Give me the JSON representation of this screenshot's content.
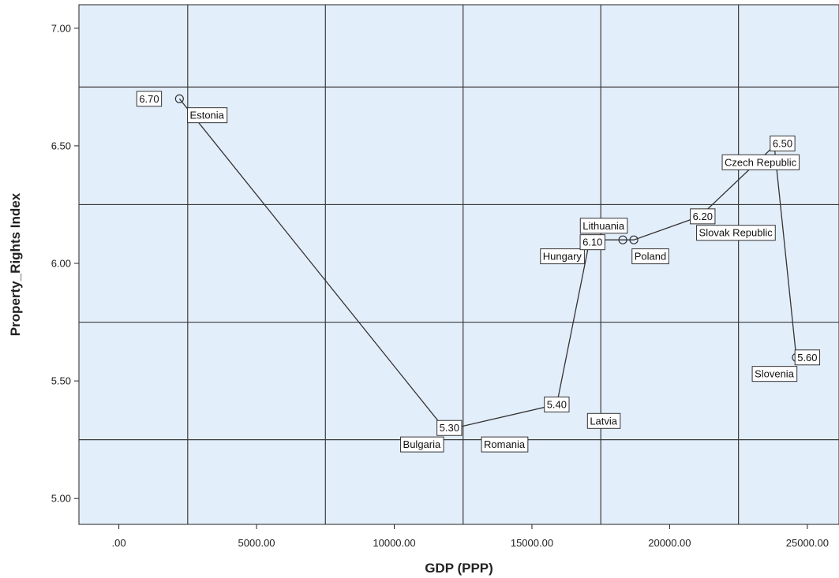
{
  "chart_data": {
    "type": "scatter",
    "title": "",
    "xlabel": "GDP (PPP)",
    "ylabel": "Property_Rights Index",
    "xlim": [
      -1450,
      26150
    ],
    "ylim": [
      4.89,
      7.1
    ],
    "x_ticks": [
      0,
      5000,
      10000,
      15000,
      20000,
      25000
    ],
    "x_tick_labels": [
      ".00",
      "5000.00",
      "10000.00",
      "15000.00",
      "20000.00",
      "25000.00"
    ],
    "y_ticks": [
      5.0,
      5.5,
      6.0,
      6.5,
      7.0
    ],
    "y_tick_labels": [
      "5.00",
      "5.50",
      "6.00",
      "6.50",
      "7.00"
    ],
    "grid": true,
    "background": "#e3eefb",
    "line_color": "#333333",
    "points": [
      {
        "country": "Estonia",
        "x": 2200,
        "y": 6.7
      },
      {
        "country": "Bulgaria",
        "x": 11800,
        "y": 5.3
      },
      {
        "country": "Romania",
        "x": 12200,
        "y": 5.3
      },
      {
        "country": "Latvia",
        "x": 15900,
        "y": 5.4
      },
      {
        "country": "Hungary",
        "x": 17100,
        "y": 6.1
      },
      {
        "country": "Lithuania",
        "x": 18300,
        "y": 6.1
      },
      {
        "country": "Poland",
        "x": 18700,
        "y": 6.1
      },
      {
        "country": "Slovak Republic",
        "x": 21100,
        "y": 6.2
      },
      {
        "country": "Czech Republic",
        "x": 23800,
        "y": 6.5
      },
      {
        "country": "Slovenia",
        "x": 24600,
        "y": 5.6
      }
    ],
    "value_labels": [
      {
        "text": "6.70",
        "x": 1100,
        "y": 6.7
      },
      {
        "text": "5.30",
        "x": 12000,
        "y": 5.3
      },
      {
        "text": "5.40",
        "x": 15900,
        "y": 5.4
      },
      {
        "text": "6.10",
        "x": 17200,
        "y": 6.09
      },
      {
        "text": "6.20",
        "x": 21200,
        "y": 6.2
      },
      {
        "text": "6.50",
        "x": 24100,
        "y": 6.51
      },
      {
        "text": "5.60",
        "x": 25000,
        "y": 5.6
      }
    ],
    "country_labels": [
      {
        "text": "Estonia",
        "x": 3200,
        "y": 6.63
      },
      {
        "text": "Bulgaria",
        "x": 11000,
        "y": 5.23
      },
      {
        "text": "Romania",
        "x": 14000,
        "y": 5.23
      },
      {
        "text": "Latvia",
        "x": 17600,
        "y": 5.33
      },
      {
        "text": "Hungary",
        "x": 16100,
        "y": 6.03
      },
      {
        "text": "Lithuania",
        "x": 17600,
        "y": 6.16
      },
      {
        "text": "Poland",
        "x": 19300,
        "y": 6.03
      },
      {
        "text": "Slovak Republic",
        "x": 22400,
        "y": 6.13
      },
      {
        "text": "Czech Republic",
        "x": 23300,
        "y": 6.43
      },
      {
        "text": "Slovenia",
        "x": 23800,
        "y": 5.53
      }
    ]
  }
}
